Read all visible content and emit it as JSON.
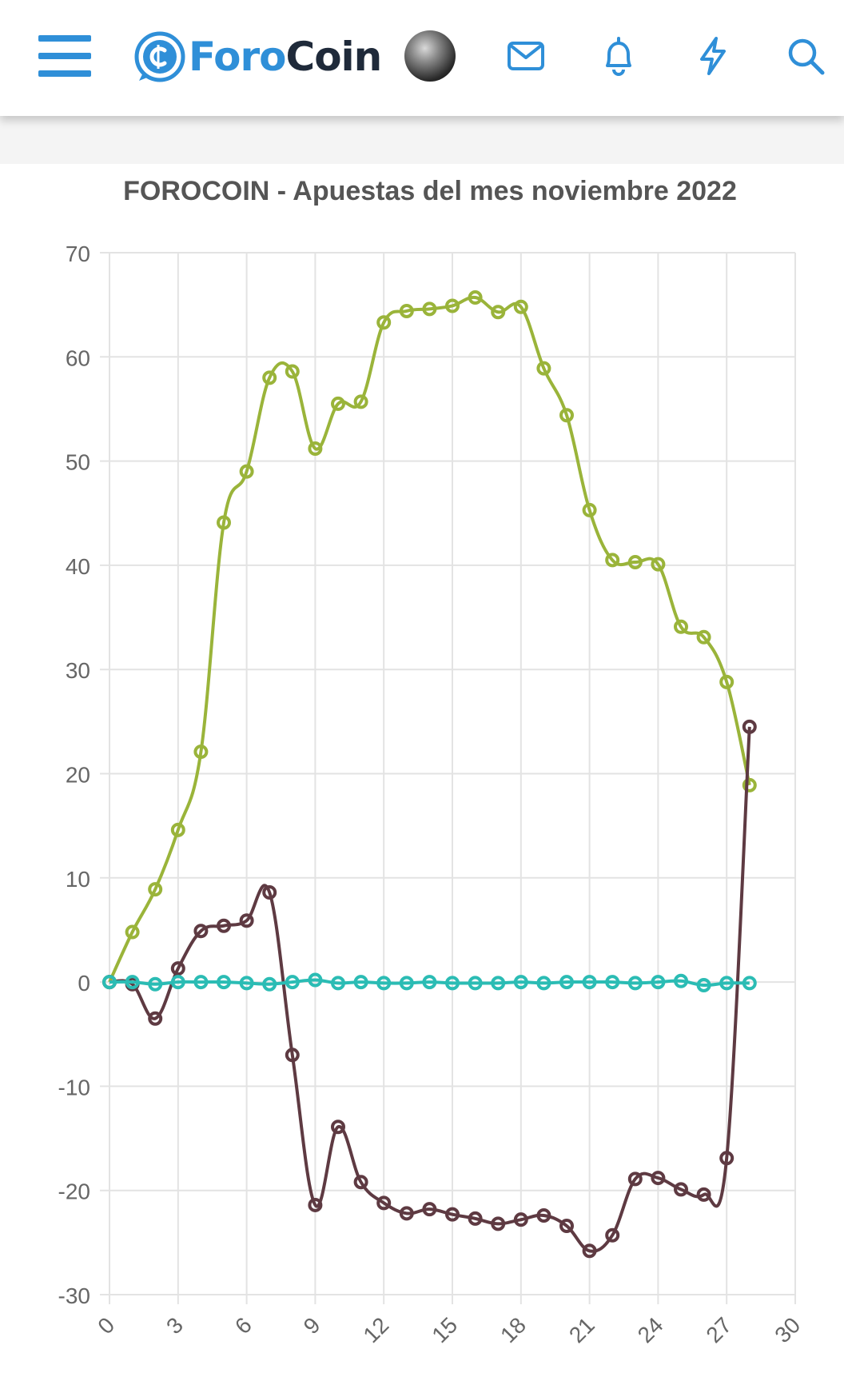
{
  "header": {
    "logo_text_part1": "Foro",
    "logo_text_part2": "Coin",
    "icons": [
      "menu-icon",
      "forocoin-logo-icon",
      "avatar",
      "mail-icon",
      "bell-icon",
      "lightning-icon",
      "search-icon"
    ]
  },
  "colors": {
    "brand_blue": "#2f8fd8",
    "green_series": "#9ab43a",
    "maroon_series": "#5e3a42",
    "teal_series": "#2bbcb4"
  },
  "chart_data": {
    "type": "line",
    "title": "FOROCOIN - Apuestas del mes noviembre 2022",
    "xlabel": "",
    "ylabel": "",
    "xlim": [
      0,
      30
    ],
    "ylim": [
      -30,
      70
    ],
    "x_ticks": [
      "0",
      "3",
      "6",
      "9",
      "12",
      "15",
      "18",
      "21",
      "24",
      "27",
      "30"
    ],
    "y_ticks": [
      "70",
      "60",
      "50",
      "40",
      "30",
      "20",
      "10",
      "0",
      "-10",
      "-20",
      "-30"
    ],
    "grid": true,
    "legend": "none",
    "series": [
      {
        "color": "#9ab43a",
        "x": [
          0,
          1,
          2,
          3,
          4,
          5,
          6,
          7,
          8,
          9,
          10,
          11,
          12,
          13,
          14,
          15,
          16,
          17,
          18,
          19,
          20,
          21,
          22,
          23,
          24,
          25,
          26,
          27,
          28
        ],
        "values": [
          0,
          4.8,
          8.9,
          14.6,
          22.1,
          44.1,
          49,
          58,
          58.6,
          51.2,
          55.5,
          55.7,
          63.3,
          64.4,
          64.6,
          64.9,
          65.7,
          64.3,
          64.8,
          58.9,
          54.4,
          45.3,
          40.5,
          40.3,
          40.1,
          34.1,
          33.1,
          28.8,
          18.9
        ]
      },
      {
        "color": "#5e3a42",
        "x": [
          0,
          1,
          2,
          3,
          4,
          5,
          6,
          7,
          8,
          9,
          10,
          11,
          12,
          13,
          14,
          15,
          16,
          17,
          18,
          19,
          20,
          21,
          22,
          23,
          24,
          25,
          26,
          27,
          28
        ],
        "values": [
          0,
          -0.2,
          -3.5,
          1.3,
          4.9,
          5.4,
          5.9,
          8.6,
          -7,
          -21.4,
          -13.9,
          -19.2,
          -21.2,
          -22.2,
          -21.8,
          -22.3,
          -22.7,
          -23.2,
          -22.8,
          -22.4,
          -23.4,
          -25.8,
          -24.3,
          -18.9,
          -18.8,
          -19.9,
          -20.4,
          -16.9,
          24.5
        ]
      },
      {
        "color": "#2bbcb4",
        "x": [
          0,
          1,
          2,
          3,
          4,
          5,
          6,
          7,
          8,
          9,
          10,
          11,
          12,
          13,
          14,
          15,
          16,
          17,
          18,
          19,
          20,
          21,
          22,
          23,
          24,
          25,
          26,
          27,
          28
        ],
        "values": [
          0,
          0,
          -0.2,
          0,
          0,
          0,
          -0.1,
          -0.2,
          0,
          0.2,
          -0.1,
          0,
          -0.1,
          -0.1,
          0,
          -0.1,
          -0.1,
          -0.1,
          0,
          -0.1,
          0,
          0,
          0,
          -0.1,
          0,
          0.1,
          -0.3,
          -0.1,
          -0.1
        ]
      }
    ]
  }
}
